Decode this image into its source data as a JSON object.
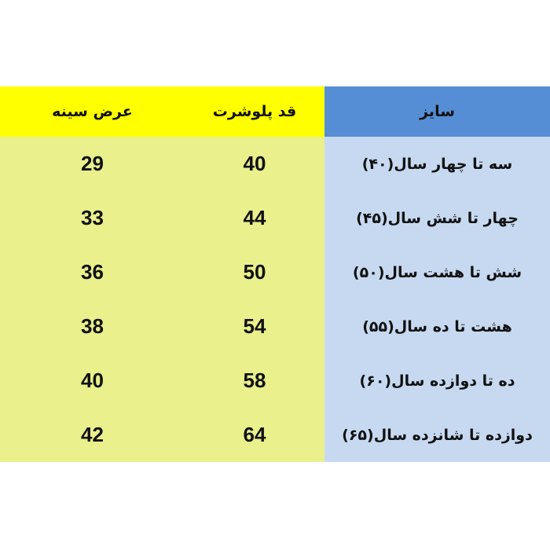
{
  "headers": {
    "size": "سایز",
    "length": "قد پلوشرت",
    "chest": "عرض سینه"
  },
  "rows": [
    {
      "size": "سه تا چهار سال(۴۰)",
      "length": "40",
      "chest": "29"
    },
    {
      "size": "چهار تا شش سال(۴۵)",
      "length": "44",
      "chest": "33"
    },
    {
      "size": "شش تا هشت سال(۵۰)",
      "length": "50",
      "chest": "36"
    },
    {
      "size": "هشت تا ده سال(۵۵)",
      "length": "54",
      "chest": "38"
    },
    {
      "size": "ده تا دوازده سال(۶۰)",
      "length": "58",
      "chest": "40"
    },
    {
      "size": "دوازده تا شانزده سال(۶۵)",
      "length": "64",
      "chest": "42"
    }
  ],
  "colors": {
    "size_header": "#558ed5",
    "size_body": "#c6d9f0",
    "yellow_header": "#ffff00",
    "yellow_body": "#e9f08c"
  }
}
